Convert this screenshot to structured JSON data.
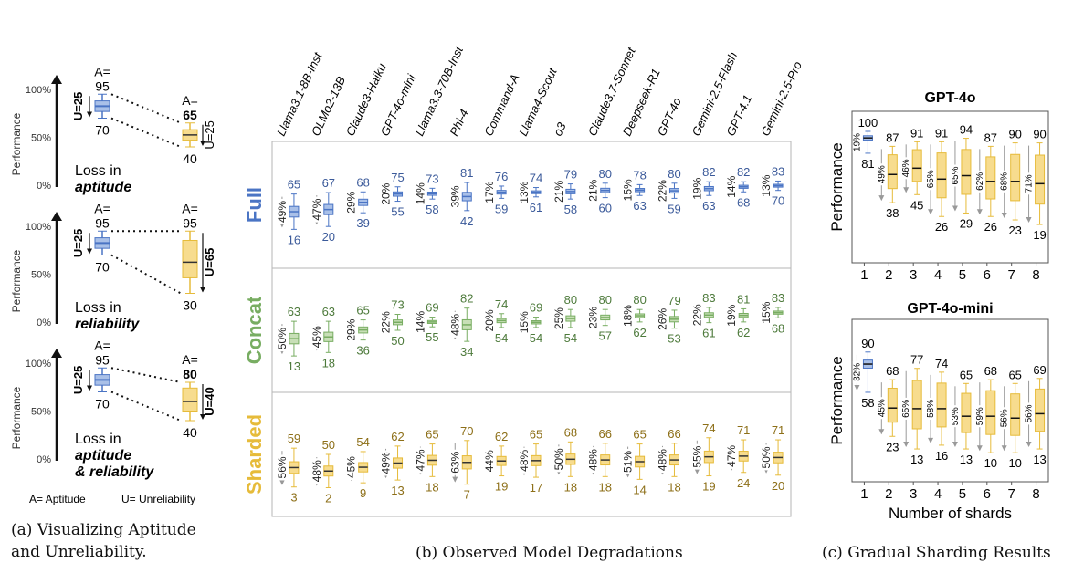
{
  "colors": {
    "full": "#4a74c4",
    "full_fill": "#a9c0e8",
    "concat": "#78ad62",
    "concat_fill": "#c8dfb7",
    "sharded": "#e6bb3a",
    "sharded_fill": "#f7dc8e",
    "text_full": "#3b5a9a",
    "text_concat": "#4d7a3b",
    "text_sharded": "#8d6f18"
  },
  "captions": {
    "a_line1": "(a)  Visualizing  Aptitude",
    "a_line2": "and Unreliability.",
    "b": "(b) Observed Model Degradations",
    "c": "(c) Gradual Sharding Results"
  },
  "panel_a": {
    "ylabel": "Performance",
    "ticks": [
      "100%",
      "50%",
      "0%"
    ],
    "legend_a": "A= Aptitude",
    "legend_u": "U= Unreliability",
    "rows": [
      {
        "a_label": "A=",
        "a_left": "95",
        "low_left": "70",
        "u_left": "U=25",
        "a_right_label": "A=",
        "a_right": "65",
        "a_right_bold": true,
        "low_right": "40",
        "u_right": "U=25",
        "u_right_bold": false,
        "text1": "Loss in",
        "text2": "aptitude",
        "text3": ""
      },
      {
        "a_label": "A=",
        "a_left": "95",
        "low_left": "70",
        "u_left": "U=25",
        "a_right_label": "A=",
        "a_right": "95",
        "a_right_bold": false,
        "low_right": "30",
        "u_right": "U=65",
        "u_right_bold": true,
        "text1": "Loss in",
        "text2": "reliability",
        "text3": ""
      },
      {
        "a_label": "A=",
        "a_left": "95",
        "low_left": "70",
        "u_left": "U=25",
        "a_right_label": "A=",
        "a_right": "80",
        "a_right_bold": true,
        "low_right": "40",
        "u_right": "U=40",
        "u_right_bold": true,
        "text1": "Loss in",
        "text2": "aptitude",
        "text3": "& reliability"
      }
    ]
  },
  "chart_data": [
    {
      "type": "box",
      "title": "",
      "models": [
        "Llama3.1-8B-Inst",
        "OLMo2-13B",
        "Claude3-Haiku",
        "GPT-4o-mini",
        "Llama3.3-70B-Inst",
        "Phi-4",
        "Command-A",
        "Llama4-Scout",
        "o3",
        "Claude3.7-Sonnet",
        "Deepseek-R1",
        "GPT-4o",
        "Gemini-2.5-Flash",
        "GPT-4.1",
        "Gemini-2.5-Pro"
      ],
      "series": [
        {
          "name": "Full",
          "top": [
            65,
            67,
            68,
            75,
            73,
            81,
            76,
            74,
            79,
            80,
            78,
            80,
            82,
            82,
            83
          ],
          "bottom": [
            16,
            20,
            39,
            55,
            58,
            42,
            59,
            61,
            58,
            60,
            63,
            59,
            63,
            68,
            70
          ],
          "unreliability": [
            "49%",
            "47%",
            "29%",
            "20%",
            "14%",
            "39%",
            "17%",
            "13%",
            "21%",
            "21%",
            "15%",
            "22%",
            "19%",
            "14%",
            "13%"
          ]
        },
        {
          "name": "Concat",
          "top": [
            63,
            63,
            65,
            73,
            69,
            82,
            74,
            69,
            80,
            80,
            80,
            79,
            83,
            81,
            83
          ],
          "bottom": [
            13,
            18,
            36,
            50,
            55,
            34,
            54,
            54,
            54,
            57,
            62,
            53,
            61,
            62,
            68
          ],
          "unreliability": [
            "50%",
            "45%",
            "29%",
            "22%",
            "14%",
            "48%",
            "20%",
            "15%",
            "25%",
            "23%",
            "18%",
            "26%",
            "22%",
            "19%",
            "15%"
          ]
        },
        {
          "name": "Sharded",
          "top": [
            59,
            50,
            54,
            62,
            65,
            70,
            62,
            65,
            68,
            66,
            65,
            66,
            74,
            71,
            71
          ],
          "bottom": [
            3,
            2,
            9,
            13,
            18,
            7,
            19,
            17,
            18,
            18,
            14,
            18,
            19,
            24,
            20
          ],
          "unreliability": [
            "56%",
            "48%",
            "45%",
            "49%",
            "47%",
            "63%",
            "44%",
            "48%",
            "50%",
            "48%",
            "51%",
            "48%",
            "55%",
            "47%",
            "50%"
          ]
        }
      ]
    },
    {
      "type": "box",
      "title": "GPT-4o",
      "xlabel": "",
      "ylabel": "Performance",
      "x": [
        1,
        2,
        3,
        4,
        5,
        6,
        7,
        8
      ],
      "top": [
        100,
        87,
        91,
        91,
        94,
        87,
        90,
        90
      ],
      "bottom": [
        81,
        38,
        45,
        26,
        29,
        26,
        23,
        19
      ],
      "unreliability": [
        "19%",
        "49%",
        "46%",
        "65%",
        "65%",
        "62%",
        "68%",
        "71%"
      ]
    },
    {
      "type": "box",
      "title": "GPT-4o-mini",
      "xlabel": "Number of shards",
      "ylabel": "Performance",
      "x": [
        1,
        2,
        3,
        4,
        5,
        6,
        7,
        8
      ],
      "top": [
        90,
        68,
        77,
        74,
        65,
        68,
        65,
        69
      ],
      "bottom": [
        58,
        23,
        13,
        16,
        13,
        10,
        10,
        13
      ],
      "unreliability": [
        "32%",
        "45%",
        "65%",
        "58%",
        "53%",
        "59%",
        "56%",
        "56%"
      ]
    }
  ]
}
